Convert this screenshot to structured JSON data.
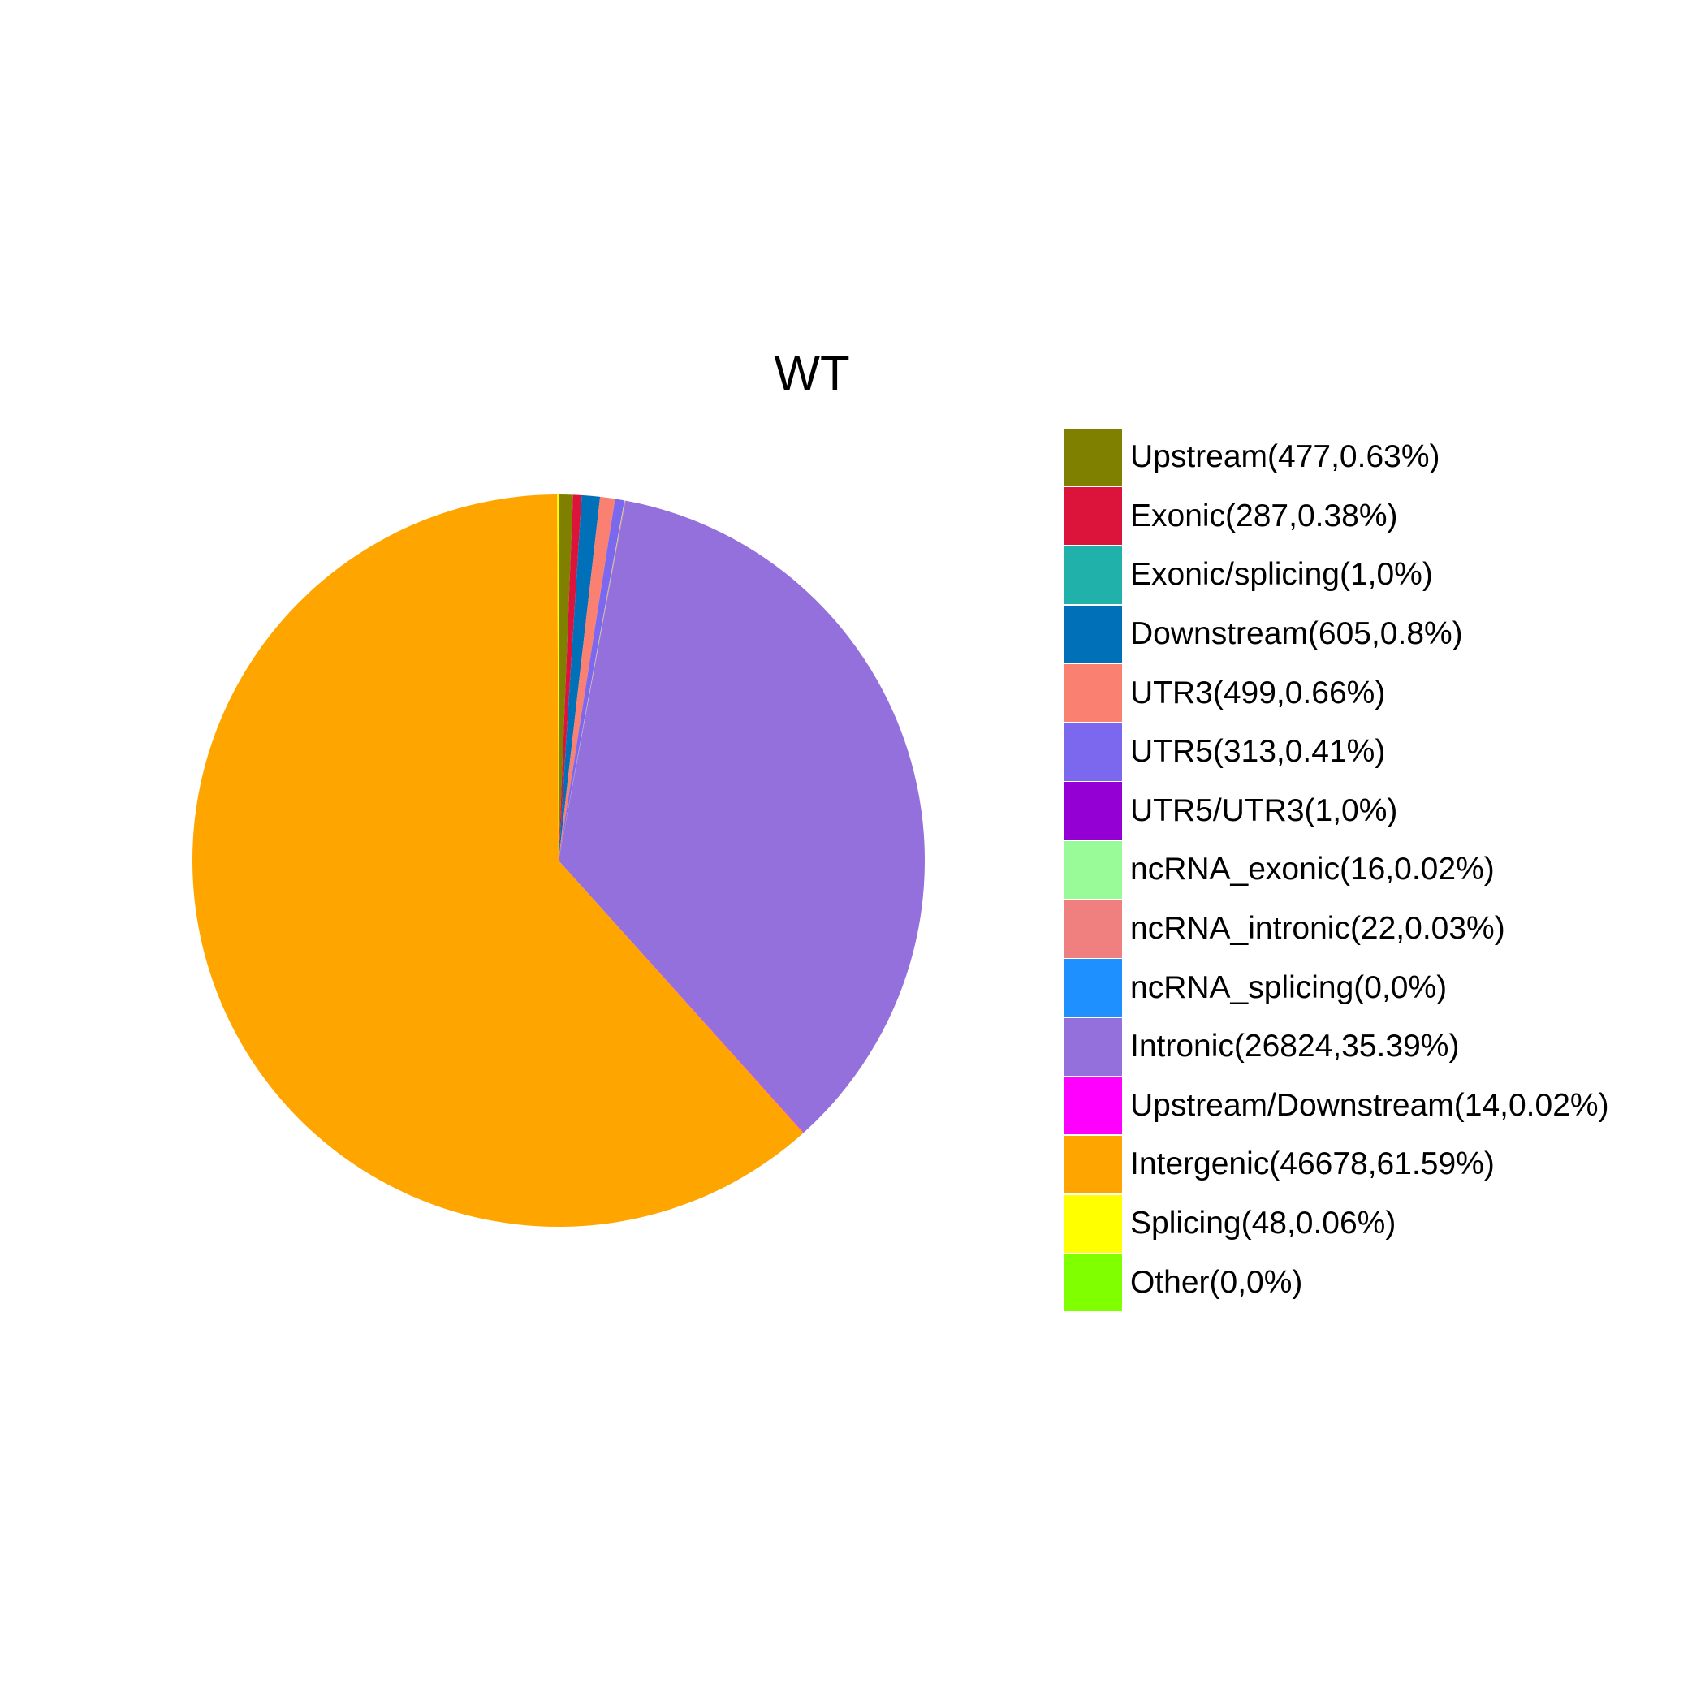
{
  "chart_data": {
    "type": "pie",
    "title": "WT",
    "legend_position": "right",
    "start_angle": "12 o'clock",
    "direction": "clockwise",
    "slices": [
      {
        "label": "Upstream(477,0.63%)",
        "category": "Upstream",
        "count": 477,
        "percent": 0.63,
        "color": "#808000"
      },
      {
        "label": "Exonic(287,0.38%)",
        "category": "Exonic",
        "count": 287,
        "percent": 0.38,
        "color": "#dc143c"
      },
      {
        "label": "Exonic/splicing(1,0%)",
        "category": "Exonic/splicing",
        "count": 1,
        "percent": 0,
        "color": "#20b2aa"
      },
      {
        "label": "Downstream(605,0.8%)",
        "category": "Downstream",
        "count": 605,
        "percent": 0.8,
        "color": "#0071b8"
      },
      {
        "label": "UTR3(499,0.66%)",
        "category": "UTR3",
        "count": 499,
        "percent": 0.66,
        "color": "#fa8072"
      },
      {
        "label": "UTR5(313,0.41%)",
        "category": "UTR5",
        "count": 313,
        "percent": 0.41,
        "color": "#7b68ee"
      },
      {
        "label": "UTR5/UTR3(1,0%)",
        "category": "UTR5/UTR3",
        "count": 1,
        "percent": 0,
        "color": "#9400d3"
      },
      {
        "label": "ncRNA_exonic(16,0.02%)",
        "category": "ncRNA_exonic",
        "count": 16,
        "percent": 0.02,
        "color": "#98fb98"
      },
      {
        "label": "ncRNA_intronic(22,0.03%)",
        "category": "ncRNA_intronic",
        "count": 22,
        "percent": 0.03,
        "color": "#f08080"
      },
      {
        "label": "ncRNA_splicing(0,0%)",
        "category": "ncRNA_splicing",
        "count": 0,
        "percent": 0,
        "color": "#1e90ff"
      },
      {
        "label": "Intronic(26824,35.39%)",
        "category": "Intronic",
        "count": 26824,
        "percent": 35.39,
        "color": "#9370db"
      },
      {
        "label": "Upstream/Downstream(14,0.02%)",
        "category": "Upstream/Downstream",
        "count": 14,
        "percent": 0.02,
        "color": "#ff00ff"
      },
      {
        "label": "Intergenic(46678,61.59%)",
        "category": "Intergenic",
        "count": 46678,
        "percent": 61.59,
        "color": "#ffa500"
      },
      {
        "label": "Splicing(48,0.06%)",
        "category": "Splicing",
        "count": 48,
        "percent": 0.06,
        "color": "#ffff00"
      },
      {
        "label": "Other(0,0%)",
        "category": "Other",
        "count": 0,
        "percent": 0,
        "color": "#7fff00"
      }
    ]
  }
}
